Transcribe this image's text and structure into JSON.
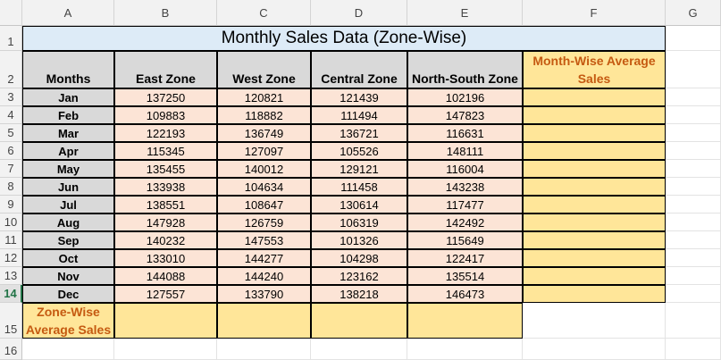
{
  "columns": [
    "A",
    "B",
    "C",
    "D",
    "E",
    "F",
    "G"
  ],
  "rows": [
    "1",
    "2",
    "3",
    "4",
    "5",
    "6",
    "7",
    "8",
    "9",
    "10",
    "11",
    "12",
    "13",
    "14",
    "15",
    "16"
  ],
  "selected_row": "14",
  "title": "Monthly Sales Data (Zone-Wise)",
  "headers": {
    "months": "Months",
    "zones": [
      "East Zone",
      "West Zone",
      "Central Zone",
      "North-South Zone"
    ],
    "month_avg": "Month-Wise Average Sales",
    "zone_avg": "Zone-Wise Average Sales"
  },
  "table": [
    {
      "month": "Jan",
      "values": [
        "137250",
        "120821",
        "121439",
        "102196"
      ]
    },
    {
      "month": "Feb",
      "values": [
        "109883",
        "118882",
        "111494",
        "147823"
      ]
    },
    {
      "month": "Mar",
      "values": [
        "122193",
        "136749",
        "136721",
        "116631"
      ]
    },
    {
      "month": "Apr",
      "values": [
        "115345",
        "127097",
        "105526",
        "148111"
      ]
    },
    {
      "month": "May",
      "values": [
        "135455",
        "140012",
        "129121",
        "116004"
      ]
    },
    {
      "month": "Jun",
      "values": [
        "133938",
        "104634",
        "111458",
        "143238"
      ]
    },
    {
      "month": "Jul",
      "values": [
        "138551",
        "108647",
        "130614",
        "117477"
      ]
    },
    {
      "month": "Aug",
      "values": [
        "147928",
        "126759",
        "106319",
        "142492"
      ]
    },
    {
      "month": "Sep",
      "values": [
        "140232",
        "147553",
        "101326",
        "115649"
      ]
    },
    {
      "month": "Oct",
      "values": [
        "133010",
        "144277",
        "104298",
        "122417"
      ]
    },
    {
      "month": "Nov",
      "values": [
        "144088",
        "144240",
        "123162",
        "135514"
      ]
    },
    {
      "month": "Dec",
      "values": [
        "127557",
        "133790",
        "138218",
        "146473"
      ]
    }
  ],
  "colors": {
    "title_fill": "#ddebf7",
    "header_fill": "#d9d9d9",
    "value_fill": "#fce4d6",
    "average_fill": "#ffe699",
    "average_text": "#c55a11",
    "selection": "#217346"
  }
}
